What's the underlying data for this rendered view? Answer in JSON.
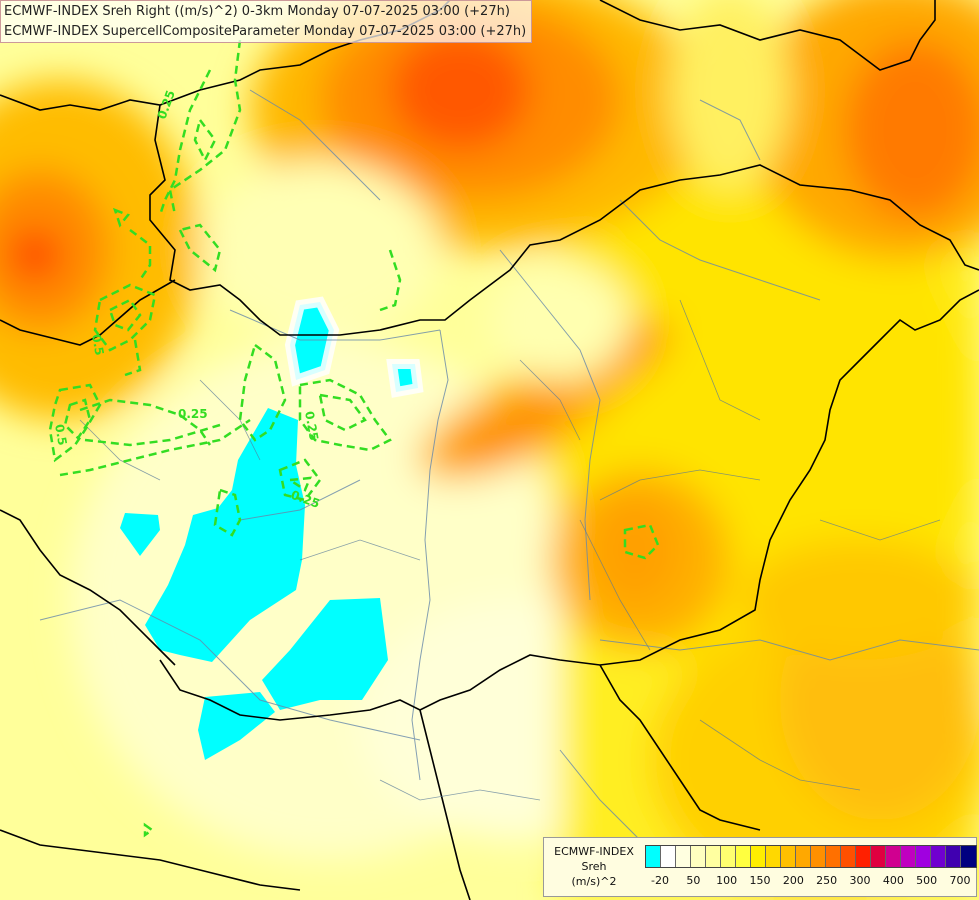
{
  "title": {
    "line1": "ECMWF-INDEX Sreh Right ((m/s)^2) 0-3km Monday 07-07-2025 03:00 (+27h)",
    "line2": "ECMWF-INDEX SupercellCompositeParameter Monday 07-07-2025 03:00 (+27h)"
  },
  "contour_labels": [
    "0.25",
    "0.25",
    "0.5",
    "0.5",
    "0.25",
    "0.25"
  ],
  "legend": {
    "title_lines": [
      "ECMWF-INDEX",
      "Sreh",
      "(m/s)^2"
    ],
    "colors": [
      "#00ffff",
      "#ffffff",
      "#ffffe0",
      "#ffffc0",
      "#ffffa0",
      "#ffff70",
      "#ffff40",
      "#ffee00",
      "#ffd800",
      "#ffc000",
      "#ffa800",
      "#ff9000",
      "#ff7000",
      "#ff5000",
      "#ff2000",
      "#e00040",
      "#d00090",
      "#c000c0",
      "#a000e0",
      "#7000d0",
      "#4000b0",
      "#000080"
    ],
    "tick_labels": [
      "-20",
      "50",
      "100",
      "150",
      "200",
      "250",
      "300",
      "400",
      "500",
      "700"
    ]
  }
}
